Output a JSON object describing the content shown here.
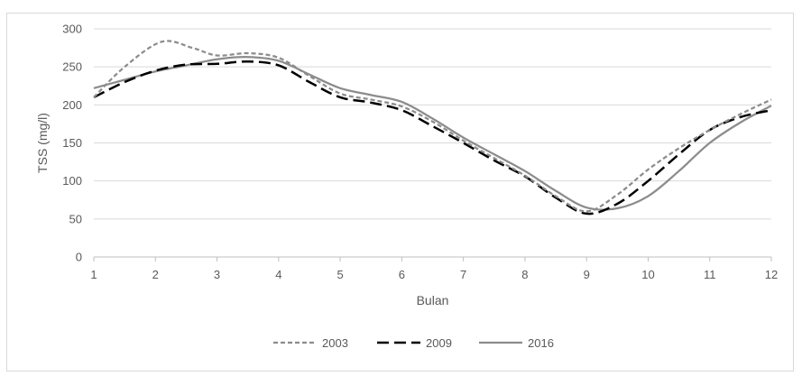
{
  "chart_data": {
    "type": "line",
    "xlabel": "Bulan",
    "ylabel": "TSS (mg/l)",
    "x": [
      1,
      2,
      3,
      4,
      5,
      6,
      7,
      8,
      9,
      10,
      11,
      12
    ],
    "xlim": [
      1,
      12
    ],
    "ylim": [
      0,
      300
    ],
    "yticks": [
      0,
      50,
      100,
      150,
      200,
      250,
      300
    ],
    "xticks": [
      1,
      2,
      3,
      4,
      5,
      6,
      7,
      8,
      9,
      10,
      11,
      12
    ],
    "grid": "horizontal",
    "legend_position": "bottom",
    "series": [
      {
        "name": "2003",
        "style": "dotted",
        "color": "#8c8c8c",
        "points": [
          [
            1,
            210
          ],
          [
            1.5,
            250
          ],
          [
            2.1,
            283
          ],
          [
            2.6,
            275
          ],
          [
            3,
            265
          ],
          [
            3.5,
            268
          ],
          [
            4,
            262
          ],
          [
            4.5,
            238
          ],
          [
            5,
            215
          ],
          [
            5.5,
            207
          ],
          [
            6,
            198
          ],
          [
            6.5,
            178
          ],
          [
            7,
            153
          ],
          [
            7.5,
            130
          ],
          [
            8,
            107
          ],
          [
            8.5,
            80
          ],
          [
            9,
            60
          ],
          [
            9.5,
            82
          ],
          [
            10,
            115
          ],
          [
            10.5,
            143
          ],
          [
            11,
            167
          ],
          [
            11.5,
            188
          ],
          [
            12,
            207
          ]
        ]
      },
      {
        "name": "2009",
        "style": "dashed",
        "color": "#000000",
        "points": [
          [
            1,
            210
          ],
          [
            1.5,
            230
          ],
          [
            2,
            245
          ],
          [
            2.5,
            253
          ],
          [
            3,
            254
          ],
          [
            3.5,
            257
          ],
          [
            4,
            252
          ],
          [
            4.5,
            230
          ],
          [
            5,
            210
          ],
          [
            5.5,
            203
          ],
          [
            6,
            193
          ],
          [
            6.5,
            172
          ],
          [
            7,
            150
          ],
          [
            7.5,
            127
          ],
          [
            8,
            106
          ],
          [
            8.5,
            78
          ],
          [
            9,
            57
          ],
          [
            9.5,
            70
          ],
          [
            10,
            100
          ],
          [
            10.5,
            135
          ],
          [
            11,
            167
          ],
          [
            11.5,
            184
          ],
          [
            12,
            193
          ]
        ]
      },
      {
        "name": "2016",
        "style": "solid",
        "color": "#8c8c8c",
        "points": [
          [
            1,
            222
          ],
          [
            1.5,
            233
          ],
          [
            2,
            244
          ],
          [
            2.5,
            252
          ],
          [
            3,
            260
          ],
          [
            3.5,
            263
          ],
          [
            4,
            258
          ],
          [
            4.5,
            240
          ],
          [
            5,
            222
          ],
          [
            5.5,
            213
          ],
          [
            6,
            204
          ],
          [
            6.5,
            182
          ],
          [
            7,
            157
          ],
          [
            7.5,
            135
          ],
          [
            8,
            113
          ],
          [
            8.5,
            87
          ],
          [
            9,
            65
          ],
          [
            9.5,
            64
          ],
          [
            10,
            80
          ],
          [
            10.5,
            113
          ],
          [
            11,
            150
          ],
          [
            11.5,
            177
          ],
          [
            12,
            199
          ]
        ]
      }
    ]
  }
}
